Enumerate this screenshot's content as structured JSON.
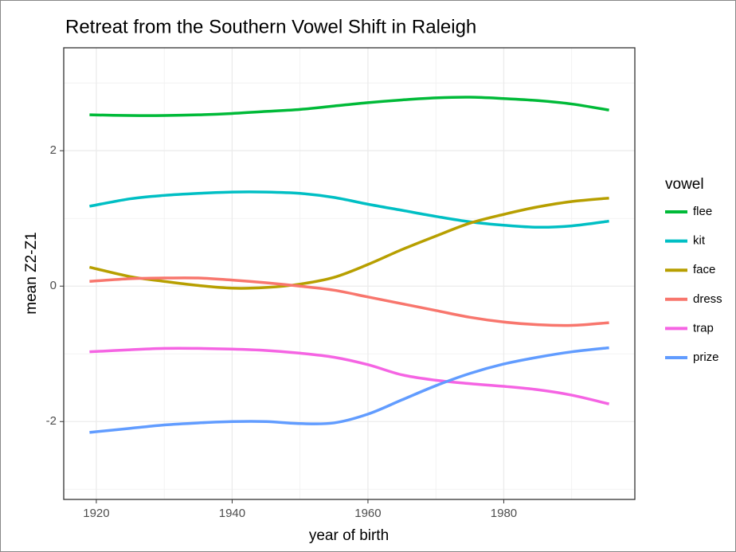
{
  "chart_data": {
    "type": "line",
    "title": "Retreat from the Southern Vowel Shift in Raleigh",
    "xlabel": "year of birth",
    "ylabel": "mean Z2-Z1",
    "legend_title": "vowel",
    "legend": "right",
    "x": [
      1919,
      1925,
      1930,
      1935,
      1940,
      1945,
      1950,
      1955,
      1960,
      1965,
      1970,
      1975,
      1980,
      1985,
      1990,
      1995.5
    ],
    "series": [
      {
        "name": "flee",
        "color": "#00ba38",
        "values": [
          2.53,
          2.52,
          2.52,
          2.53,
          2.55,
          2.58,
          2.61,
          2.66,
          2.71,
          2.75,
          2.78,
          2.79,
          2.77,
          2.74,
          2.69,
          2.6
        ]
      },
      {
        "name": "kit",
        "color": "#00bfc4",
        "values": [
          1.18,
          1.29,
          1.34,
          1.37,
          1.39,
          1.39,
          1.37,
          1.31,
          1.21,
          1.12,
          1.03,
          0.95,
          0.9,
          0.87,
          0.89,
          0.96
        ]
      },
      {
        "name": "face",
        "color": "#b79f00",
        "values": [
          0.28,
          0.14,
          0.07,
          0.01,
          -0.03,
          -0.02,
          0.03,
          0.13,
          0.32,
          0.54,
          0.74,
          0.93,
          1.06,
          1.17,
          1.25,
          1.3
        ]
      },
      {
        "name": "dress",
        "color": "#f8766d",
        "values": [
          0.07,
          0.11,
          0.12,
          0.12,
          0.09,
          0.05,
          0,
          -0.06,
          -0.16,
          -0.26,
          -0.36,
          -0.46,
          -0.53,
          -0.57,
          -0.58,
          -0.54
        ]
      },
      {
        "name": "trap",
        "color": "#f564e3",
        "values": [
          -0.97,
          -0.94,
          -0.92,
          -0.92,
          -0.93,
          -0.95,
          -0.99,
          -1.05,
          -1.16,
          -1.31,
          -1.39,
          -1.44,
          -1.48,
          -1.53,
          -1.61,
          -1.74
        ]
      },
      {
        "name": "prize",
        "color": "#619cff",
        "values": [
          -2.16,
          -2.1,
          -2.05,
          -2.02,
          -2.0,
          -2.0,
          -2.03,
          -2.02,
          -1.89,
          -1.68,
          -1.47,
          -1.29,
          -1.15,
          -1.05,
          -0.97,
          -0.91
        ]
      }
    ],
    "xlim": [
      1915.2,
      1999.3
    ],
    "xticks": [
      1920,
      1940,
      1960,
      1980
    ],
    "xminor": [
      1930,
      1950,
      1970,
      1990
    ],
    "ylim": [
      -3.15,
      3.52
    ],
    "yticks": [
      -2,
      0,
      2
    ],
    "yminor": [
      -3,
      -1,
      1,
      3
    ],
    "grid": true
  }
}
